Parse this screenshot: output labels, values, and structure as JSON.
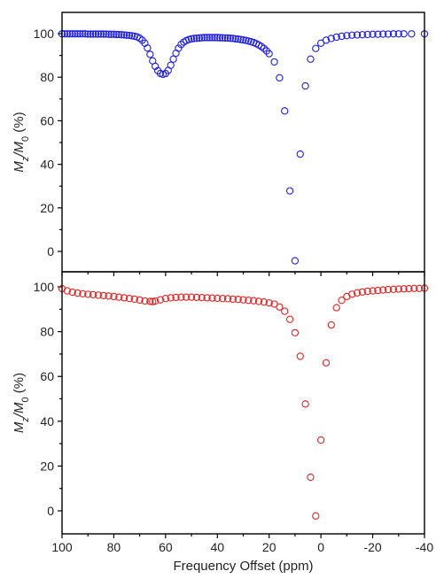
{
  "chart_data": [
    {
      "type": "scatter",
      "panel": "top",
      "marker_color": "#1f1fe0",
      "marker": "open-circle",
      "xlim": [
        100,
        -40
      ],
      "ylim": [
        -5,
        110
      ],
      "x_reversed": true,
      "yticks": [
        0,
        20,
        40,
        60,
        80,
        100
      ],
      "ytick_labels": [
        "0",
        "20",
        "40",
        "60",
        "80",
        "100"
      ],
      "ylabel": "Mz/M0 (%)",
      "series": [
        {
          "x": [
            100,
            99,
            98,
            97,
            96,
            95,
            94,
            93,
            92,
            91,
            90,
            89,
            88,
            87,
            86,
            85,
            84,
            83,
            82,
            81,
            80,
            79,
            78,
            77,
            76,
            75,
            74,
            73,
            72,
            71,
            70,
            69,
            68,
            67,
            66,
            65,
            64,
            63,
            62,
            61,
            60,
            59,
            58,
            57,
            56,
            55,
            54,
            53,
            52,
            51,
            50,
            49,
            48,
            47,
            46,
            45,
            44,
            43,
            42,
            41,
            40,
            39,
            38,
            37,
            36,
            35,
            34,
            33,
            32,
            31,
            30,
            29,
            28,
            27,
            26,
            25,
            24,
            23,
            22,
            21,
            20,
            18,
            16,
            14,
            12,
            10,
            8,
            6,
            4,
            2,
            0,
            -2,
            -4,
            -6,
            -8,
            -10,
            -12,
            -14,
            -16,
            -18,
            -20,
            -22,
            -24,
            -26,
            -28,
            -30,
            -32,
            -35,
            -40
          ],
          "y": [
            99.9,
            99.9,
            99.9,
            99.9,
            99.9,
            99.9,
            99.9,
            99.9,
            99.9,
            99.9,
            99.8,
            99.8,
            99.8,
            99.8,
            99.8,
            99.8,
            99.8,
            99.8,
            99.7,
            99.7,
            99.7,
            99.6,
            99.6,
            99.5,
            99.4,
            99.3,
            99.2,
            99.0,
            98.8,
            98.5,
            97.9,
            97.0,
            95.6,
            93.4,
            90.5,
            87.5,
            85.0,
            83.0,
            81.7,
            81.3,
            81.7,
            83.1,
            85.5,
            88.3,
            91.0,
            93.3,
            95.0,
            96.1,
            96.8,
            97.3,
            97.6,
            97.8,
            97.9,
            98.0,
            98.1,
            98.2,
            98.2,
            98.2,
            98.2,
            98.2,
            98.2,
            98.1,
            98.1,
            98.0,
            98.0,
            97.9,
            97.8,
            97.6,
            97.5,
            97.3,
            97.1,
            96.9,
            96.6,
            96.3,
            95.9,
            95.4,
            94.8,
            94.1,
            93.2,
            92.1,
            90.8,
            87.0,
            79.7,
            64.5,
            27.8,
            -4.3,
            44.7,
            76.0,
            88.3,
            93.2,
            95.6,
            97.0,
            97.8,
            98.4,
            98.8,
            99.1,
            99.3,
            99.4,
            99.5,
            99.6,
            99.7,
            99.7,
            99.8,
            99.8,
            99.9,
            99.9,
            99.9,
            99.9,
            99.9
          ]
        }
      ]
    },
    {
      "type": "scatter",
      "panel": "bottom",
      "marker_color": "#e02424",
      "marker": "open-circle",
      "xlim": [
        100,
        -40
      ],
      "ylim": [
        -10,
        110
      ],
      "x_reversed": true,
      "xticks": [
        100,
        80,
        60,
        40,
        20,
        0,
        -20,
        -40
      ],
      "xtick_labels": [
        "100",
        "80",
        "60",
        "40",
        "20",
        "0",
        "-20",
        "-40"
      ],
      "yticks": [
        0,
        20,
        40,
        60,
        80,
        100
      ],
      "ytick_labels": [
        "0",
        "20",
        "40",
        "60",
        "80",
        "100"
      ],
      "xlabel": "Frequency Offset (ppm)",
      "ylabel": "Mz/M0 (%)",
      "series": [
        {
          "x": [
            100,
            98,
            96,
            94,
            92,
            90,
            88,
            86,
            84,
            82,
            80,
            78,
            76,
            74,
            72,
            70,
            68,
            66,
            65,
            64,
            62,
            60,
            58,
            56,
            54,
            52,
            50,
            48,
            46,
            44,
            42,
            40,
            38,
            36,
            34,
            32,
            30,
            28,
            26,
            24,
            22,
            20,
            18,
            16,
            14,
            12,
            10,
            8,
            6,
            4,
            2,
            0,
            -2,
            -4,
            -6,
            -8,
            -10,
            -12,
            -14,
            -16,
            -18,
            -20,
            -22,
            -24,
            -26,
            -28,
            -30,
            -32,
            -34,
            -36,
            -38,
            -40
          ],
          "y": [
            99.2,
            98.2,
            97.6,
            97.2,
            96.9,
            96.7,
            96.5,
            96.3,
            96.1,
            95.9,
            95.7,
            95.4,
            95.1,
            94.8,
            94.5,
            94.1,
            93.7,
            93.5,
            93.4,
            93.6,
            94.2,
            94.8,
            95.1,
            95.3,
            95.4,
            95.4,
            95.4,
            95.3,
            95.2,
            95.1,
            95.0,
            94.9,
            94.8,
            94.7,
            94.5,
            94.4,
            94.2,
            94.0,
            93.8,
            93.5,
            93.2,
            92.8,
            92.3,
            91.0,
            89.1,
            85.5,
            79.5,
            69.0,
            47.7,
            15.0,
            -2.3,
            31.6,
            66.1,
            83.0,
            90.7,
            94.0,
            95.7,
            96.7,
            97.3,
            97.7,
            98.0,
            98.2,
            98.4,
            98.6,
            98.8,
            98.9,
            99.0,
            99.1,
            99.2,
            99.3,
            99.3,
            99.4
          ]
        }
      ]
    }
  ]
}
